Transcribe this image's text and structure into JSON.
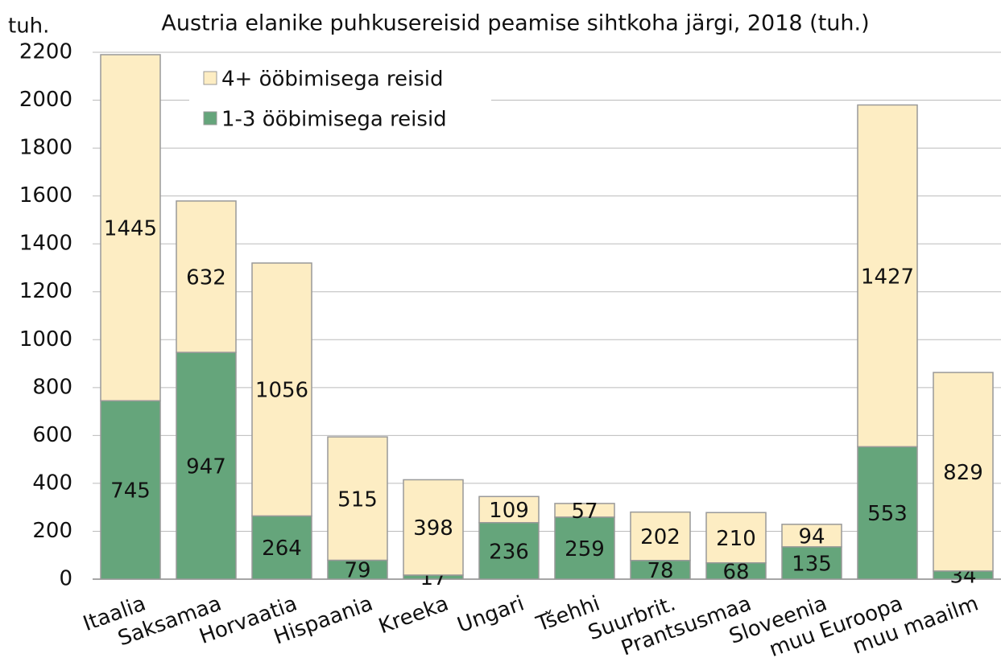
{
  "chart_data": {
    "type": "stacked_bar",
    "title": "Austria elanike puhkusereisid peamise sihtkoha järgi, 2018 (tuh.)",
    "y_label": "tuh.",
    "categories": [
      "Itaalia",
      "Saksamaa",
      "Horvaatia",
      "Hispaania",
      "Kreeka",
      "Ungari",
      "Tšehhi",
      "Suurbrit.",
      "Prantsusmaa",
      "Sloveenia",
      "muu Euroopa",
      "muu maailm"
    ],
    "series": [
      {
        "name": "1-3 ööbimisega reisid",
        "color": "#65a57b",
        "values": [
          745,
          947,
          264,
          79,
          17,
          236,
          259,
          78,
          68,
          135,
          553,
          34
        ]
      },
      {
        "name": "4+ ööbimisega reisid",
        "color": "#fdedc3",
        "values": [
          1445,
          632,
          1056,
          515,
          398,
          109,
          57,
          202,
          210,
          94,
          1427,
          829
        ]
      }
    ],
    "ylim": [
      0,
      2200
    ],
    "yticks": [
      0,
      200,
      400,
      600,
      800,
      1000,
      1200,
      1400,
      1600,
      1800,
      2000,
      2200
    ],
    "grid": true,
    "legend": "upper left"
  }
}
